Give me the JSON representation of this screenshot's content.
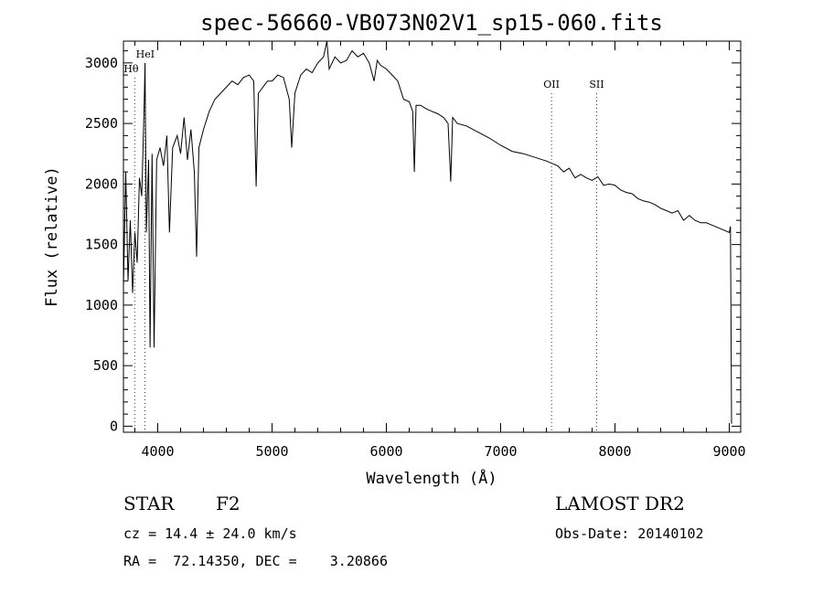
{
  "chart_data": {
    "type": "line",
    "title": "spec-56660-VB073N02V1_sp15-060.fits",
    "xlabel": "Wavelength (Å)",
    "ylabel": "Flux (relative)",
    "xlim": [
      3700,
      9100
    ],
    "ylim": [
      -50,
      3180
    ],
    "x_ticks": [
      4000,
      5000,
      6000,
      7000,
      8000,
      9000
    ],
    "y_ticks": [
      0,
      500,
      1000,
      1500,
      2000,
      2500,
      3000
    ],
    "grid": false,
    "line_markers": [
      {
        "label": "HeI",
        "x": 3889
      },
      {
        "label": "Hθ",
        "x": 3798
      },
      {
        "label": "OII",
        "x": 7445
      },
      {
        "label": "SII",
        "x": 7840
      }
    ],
    "spectrum": {
      "x": [
        3700,
        3720,
        3740,
        3760,
        3780,
        3800,
        3820,
        3840,
        3860,
        3880,
        3889,
        3900,
        3920,
        3933,
        3950,
        3968,
        3990,
        4020,
        4050,
        4080,
        4102,
        4130,
        4170,
        4200,
        4230,
        4260,
        4290,
        4320,
        4340,
        4360,
        4400,
        4450,
        4500,
        4550,
        4600,
        4650,
        4700,
        4750,
        4800,
        4840,
        4861,
        4880,
        4920,
        4960,
        5000,
        5050,
        5100,
        5150,
        5172,
        5200,
        5250,
        5300,
        5350,
        5400,
        5450,
        5480,
        5500,
        5550,
        5600,
        5650,
        5700,
        5750,
        5800,
        5850,
        5893,
        5920,
        5950,
        6000,
        6050,
        6100,
        6150,
        6200,
        6230,
        6245,
        6260,
        6300,
        6350,
        6400,
        6450,
        6500,
        6540,
        6563,
        6580,
        6620,
        6700,
        6800,
        6900,
        7000,
        7100,
        7200,
        7300,
        7400,
        7450,
        7500,
        7550,
        7600,
        7650,
        7700,
        7750,
        7800,
        7850,
        7900,
        7950,
        8000,
        8050,
        8100,
        8150,
        8200,
        8250,
        8300,
        8350,
        8400,
        8450,
        8500,
        8550,
        8600,
        8650,
        8700,
        8750,
        8800,
        8850,
        8900,
        8950,
        9000,
        9010,
        9020
      ],
      "y": [
        1150,
        2100,
        1200,
        1700,
        1100,
        1600,
        1350,
        2050,
        1900,
        2600,
        3000,
        1600,
        2200,
        650,
        2250,
        650,
        2200,
        2300,
        2150,
        2400,
        1600,
        2300,
        2400,
        2250,
        2550,
        2200,
        2450,
        2100,
        1400,
        2300,
        2450,
        2600,
        2700,
        2750,
        2800,
        2850,
        2820,
        2880,
        2900,
        2850,
        1980,
        2750,
        2800,
        2850,
        2850,
        2900,
        2880,
        2700,
        2300,
        2750,
        2900,
        2950,
        2920,
        3000,
        3050,
        3180,
        2950,
        3050,
        3000,
        3020,
        3100,
        3050,
        3080,
        3000,
        2850,
        3020,
        2980,
        2950,
        2900,
        2850,
        2700,
        2680,
        2600,
        2100,
        2650,
        2650,
        2620,
        2600,
        2580,
        2550,
        2500,
        2020,
        2550,
        2500,
        2480,
        2430,
        2380,
        2320,
        2270,
        2250,
        2220,
        2190,
        2170,
        2150,
        2100,
        2130,
        2050,
        2080,
        2050,
        2030,
        2060,
        1990,
        2000,
        1990,
        1950,
        1930,
        1920,
        1880,
        1860,
        1850,
        1830,
        1800,
        1780,
        1760,
        1780,
        1700,
        1740,
        1700,
        1680,
        1680,
        1660,
        1640,
        1620,
        1600,
        1650,
        20
      ]
    },
    "annotations": {
      "class_label": "STAR",
      "subclass_label": "F2",
      "survey_label": "LAMOST DR2",
      "cz_label": "cz = 14.4 ± 24.0 km/s",
      "obs_date_label": "Obs-Date: 20140102",
      "radec_label": "RA =  72.14350, DEC =    3.20866"
    }
  }
}
